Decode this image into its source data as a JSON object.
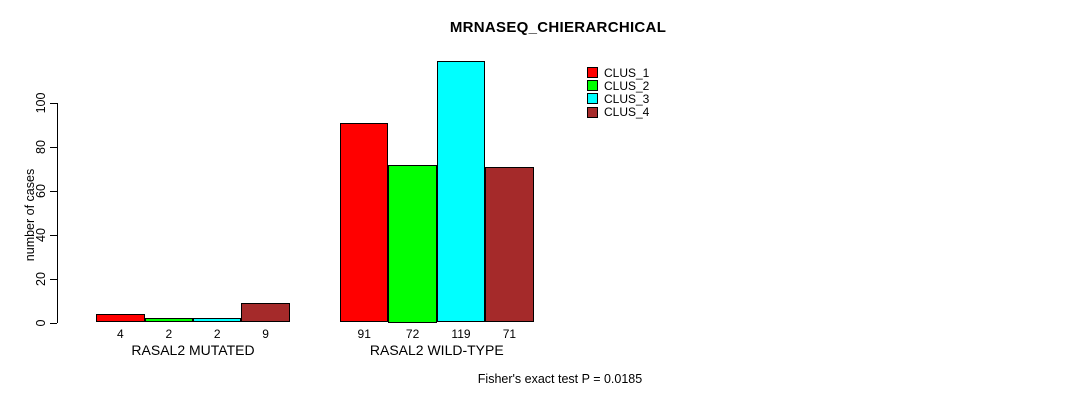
{
  "figure": {
    "title": "MRNASEQ_CHIERARCHICAL",
    "footnote": "Fisher's exact test P = 0.0185"
  },
  "chart_data": {
    "type": "bar",
    "title": "MRNASEQ_CHIERARCHICAL",
    "xlabel": "",
    "ylabel": "number of cases",
    "ylim": [
      0,
      120
    ],
    "yticks": [
      0,
      20,
      40,
      60,
      80,
      100
    ],
    "grid": false,
    "legend_position": "top-right",
    "legend_border": false,
    "bar_border_color": "#000000",
    "categories": [
      "RASAL2 MUTATED",
      "RASAL2 WILD-TYPE"
    ],
    "series": [
      {
        "name": "CLUS_1",
        "color": "#FF0000",
        "values": [
          4,
          91
        ]
      },
      {
        "name": "CLUS_2",
        "color": "#00FF00",
        "values": [
          2,
          72
        ]
      },
      {
        "name": "CLUS_3",
        "color": "#00FFFF",
        "values": [
          2,
          119
        ]
      },
      {
        "name": "CLUS_4",
        "color": "#A52A2A",
        "values": [
          9,
          71
        ]
      }
    ],
    "value_labels_shown": true,
    "annotation": "Fisher's exact test P = 0.0185"
  }
}
